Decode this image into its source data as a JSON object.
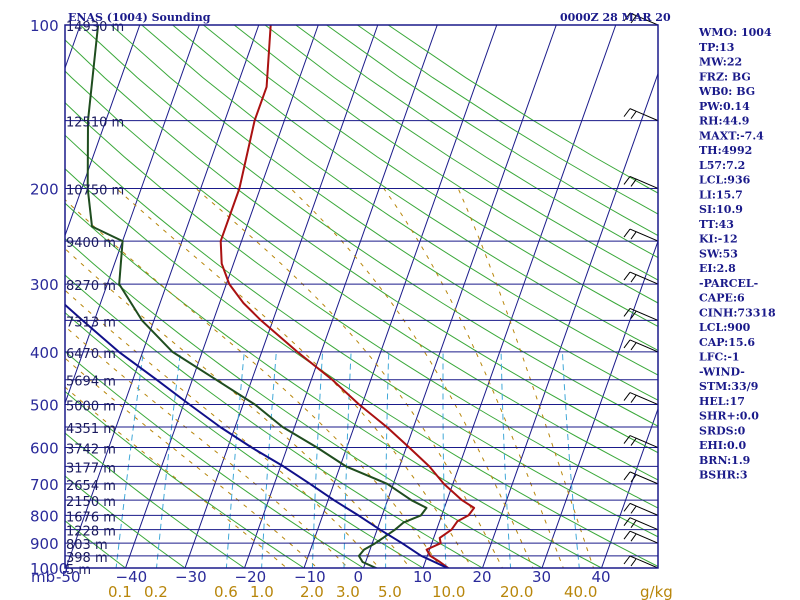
{
  "chart_data": {
    "type": "line",
    "title": "ENAS (1004) Sounding",
    "valid_time": "0000Z 28 MAR 20",
    "pressure_unit_label": "mb",
    "mixing_unit_label": "g/kg",
    "pressure_levels": [
      100,
      200,
      300,
      400,
      500,
      600,
      700,
      800,
      900,
      1000
    ],
    "temperature_ticks": [
      -50,
      -40,
      -30,
      -20,
      -10,
      0,
      10,
      20,
      30,
      40
    ],
    "temperature_tick_labels": [
      "-50",
      "−40",
      "−30",
      "−20",
      "−10",
      "0",
      "10",
      "20",
      "30",
      "40"
    ],
    "mixing_ratio_labels": [
      "0.1",
      "0.2",
      "0.6",
      "1.0",
      "2.0",
      "3.0",
      "5.0",
      "10.0",
      "20.0",
      "40.0"
    ],
    "height_labels": [
      {
        "p": 100,
        "text": "14930 m"
      },
      {
        "p": 150,
        "text": "12510 m"
      },
      {
        "p": 200,
        "text": "10750 m"
      },
      {
        "p": 250,
        "text": "9400 m"
      },
      {
        "p": 300,
        "text": "8270 m"
      },
      {
        "p": 350,
        "text": "7313 m"
      },
      {
        "p": 400,
        "text": "6470 m"
      },
      {
        "p": 450,
        "text": "5694 m"
      },
      {
        "p": 500,
        "text": "5000 m"
      },
      {
        "p": 550,
        "text": "4351 m"
      },
      {
        "p": 600,
        "text": "3742 m"
      },
      {
        "p": 650,
        "text": "3177 m"
      },
      {
        "p": 700,
        "text": "2654 m"
      },
      {
        "p": 750,
        "text": "2150 m"
      },
      {
        "p": 800,
        "text": "1676 m"
      },
      {
        "p": 850,
        "text": "1228 m"
      },
      {
        "p": 900,
        "text": "803 m"
      },
      {
        "p": 950,
        "text": "398 m"
      },
      {
        "p": 1000,
        "text": "5 m"
      }
    ],
    "series": [
      {
        "name": "Temperature",
        "color": "#aa1111",
        "points": [
          {
            "p": 1004,
            "t": 14.5
          },
          {
            "p": 975,
            "t": 12.5
          },
          {
            "p": 950,
            "t": 10.5
          },
          {
            "p": 925,
            "t": 9.5
          },
          {
            "p": 900,
            "t": 11.5
          },
          {
            "p": 880,
            "t": 11.0
          },
          {
            "p": 850,
            "t": 12.5
          },
          {
            "p": 820,
            "t": 13.0
          },
          {
            "p": 800,
            "t": 14.5
          },
          {
            "p": 775,
            "t": 15.0
          },
          {
            "p": 750,
            "t": 12.5
          },
          {
            "p": 700,
            "t": 8.5
          },
          {
            "p": 650,
            "t": 5.0
          },
          {
            "p": 600,
            "t": 0.5
          },
          {
            "p": 550,
            "t": -4.5
          },
          {
            "p": 500,
            "t": -10.5
          },
          {
            "p": 450,
            "t": -16.5
          },
          {
            "p": 400,
            "t": -24.0
          },
          {
            "p": 350,
            "t": -32.0
          },
          {
            "p": 325,
            "t": -36.0
          },
          {
            "p": 300,
            "t": -39.5
          },
          {
            "p": 275,
            "t": -42.0
          },
          {
            "p": 250,
            "t": -43.5
          },
          {
            "p": 200,
            "t": -43.5
          },
          {
            "p": 150,
            "t": -45.0
          },
          {
            "p": 130,
            "t": -45.0
          },
          {
            "p": 100,
            "t": -48.0
          }
        ]
      },
      {
        "name": "Dew point",
        "color": "#1f4d1f",
        "points": [
          {
            "p": 1004,
            "t": 2.5
          },
          {
            "p": 975,
            "t": -0.5
          },
          {
            "p": 950,
            "t": -1.5
          },
          {
            "p": 925,
            "t": -1.0
          },
          {
            "p": 900,
            "t": 0.5
          },
          {
            "p": 850,
            "t": 3.0
          },
          {
            "p": 825,
            "t": 4.0
          },
          {
            "p": 800,
            "t": 6.5
          },
          {
            "p": 775,
            "t": 7.0
          },
          {
            "p": 750,
            "t": 4.0
          },
          {
            "p": 700,
            "t": -1.0
          },
          {
            "p": 650,
            "t": -9.0
          },
          {
            "p": 600,
            "t": -15.0
          },
          {
            "p": 550,
            "t": -22.0
          },
          {
            "p": 500,
            "t": -28.0
          },
          {
            "p": 450,
            "t": -36.0
          },
          {
            "p": 400,
            "t": -45.0
          },
          {
            "p": 350,
            "t": -52.0
          },
          {
            "p": 300,
            "t": -58.0
          },
          {
            "p": 250,
            "t": -60.0
          },
          {
            "p": 235,
            "t": -66.0
          },
          {
            "p": 200,
            "t": -69.0
          },
          {
            "p": 150,
            "t": -73.0
          },
          {
            "p": 100,
            "t": -77.0
          }
        ]
      },
      {
        "name": "Parcel",
        "color": "#10108a",
        "points": [
          {
            "p": 1004,
            "t": 14.5
          },
          {
            "p": 950,
            "t": 9.0
          },
          {
            "p": 900,
            "t": 5.0
          },
          {
            "p": 850,
            "t": 0.5
          },
          {
            "p": 800,
            "t": -4.0
          },
          {
            "p": 750,
            "t": -9.0
          },
          {
            "p": 700,
            "t": -14.0
          },
          {
            "p": 650,
            "t": -19.5
          },
          {
            "p": 600,
            "t": -26.0
          },
          {
            "p": 550,
            "t": -32.5
          },
          {
            "p": 500,
            "t": -39.0
          },
          {
            "p": 450,
            "t": -46.0
          },
          {
            "p": 400,
            "t": -54.0
          },
          {
            "p": 350,
            "t": -62.0
          },
          {
            "p": 300,
            "t": -71.0
          },
          {
            "p": 250,
            "t": -80.0
          },
          {
            "p": 200,
            "t": -90.0
          },
          {
            "p": 150,
            "t": -101.0
          },
          {
            "p": 120,
            "t": -108.0
          }
        ]
      }
    ],
    "wind_barbs": [
      {
        "p": 100
      },
      {
        "p": 150
      },
      {
        "p": 200
      },
      {
        "p": 250
      },
      {
        "p": 300
      },
      {
        "p": 350
      },
      {
        "p": 400
      },
      {
        "p": 500
      },
      {
        "p": 600
      },
      {
        "p": 700
      },
      {
        "p": 800
      },
      {
        "p": 850
      },
      {
        "p": 900
      },
      {
        "p": 1000
      }
    ]
  },
  "indices": [
    "WMO: 1004",
    "TP:13",
    "MW:22",
    "FRZ: BG",
    "WB0: BG",
    "PW:0.14",
    "RH:44.9",
    "MAXT:-7.4",
    "TH:4992",
    "L57:7.2",
    "LCL:936",
    "LI:15.7",
    "SI:10.9",
    "TT:43",
    "KI:-12",
    "SW:53",
    "EI:2.8",
    "-PARCEL-",
    "CAPE:6",
    "CINH:73318",
    "LCL:900",
    "CAP:15.6",
    "LFC:-1",
    "-WIND-",
    "STM:33/9",
    "HEL:17",
    "SHR+:0.0",
    "SRDS:0",
    "EHI:0.0",
    "BRN:1.9",
    "BSHR:3"
  ],
  "colors": {
    "isobar": "#1a1a8a",
    "isotherm": "#1a1a8a",
    "dry_adiabat": "#3aa83a",
    "moist_adiabat": "#b8860b",
    "mixing_ratio": "#40a8d8"
  }
}
